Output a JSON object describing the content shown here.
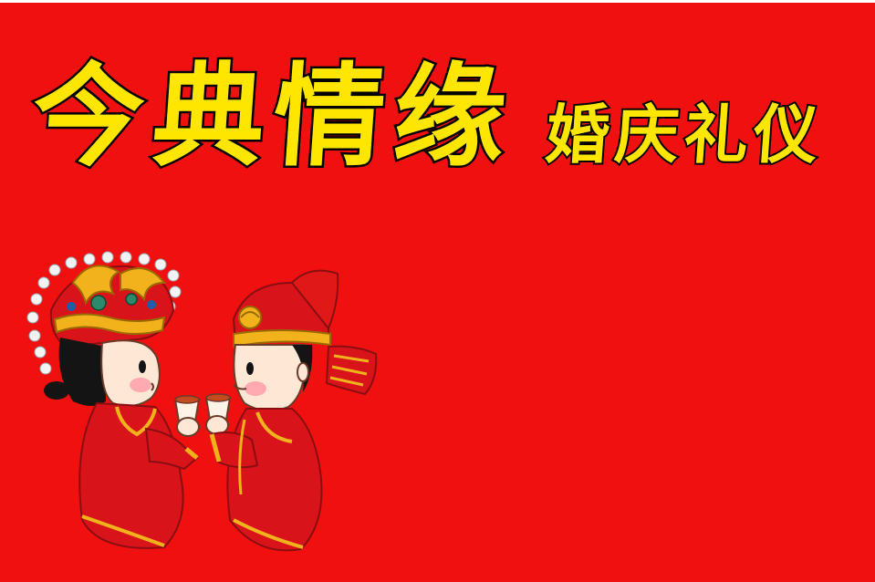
{
  "banner": {
    "title_main": "今典情缘",
    "title_sub": "婚庆礼仪"
  },
  "illustration": {
    "name": "wedding-couple-illustration",
    "colors": {
      "background": "#f01010",
      "title_fill": "#ffe600",
      "title_outline": "#000000",
      "robe_red": "#d8141a",
      "gold_trim": "#f2b21c",
      "skin": "#ffe7d6"
    }
  }
}
